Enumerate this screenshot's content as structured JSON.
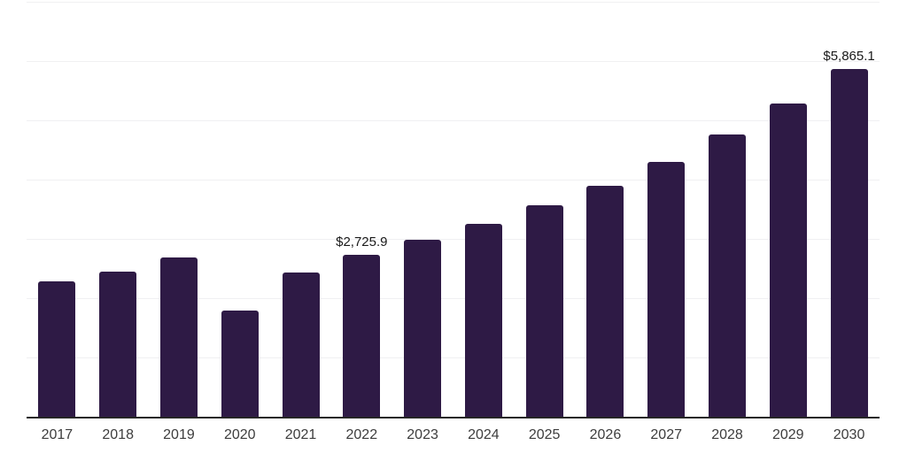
{
  "chart": {
    "background_color": "#ffffff",
    "bar_color": "#2e1a45",
    "grid_color": "#f0f0f2",
    "axis_line_color": "#262626",
    "tick_label_color": "#3d3d3d",
    "data_label_color": "#1a1a1a"
  },
  "chart_data": {
    "type": "bar",
    "title": "",
    "xlabel": "",
    "ylabel": "",
    "categories": [
      "2017",
      "2018",
      "2019",
      "2020",
      "2021",
      "2022",
      "2023",
      "2024",
      "2025",
      "2026",
      "2027",
      "2028",
      "2029",
      "2030"
    ],
    "values": [
      2280,
      2455,
      2680,
      1790,
      2440,
      2725.9,
      2990,
      3260,
      3560,
      3900,
      4300,
      4765,
      5285,
      5865.1
    ],
    "data_labels": [
      "",
      "",
      "",
      "",
      "",
      "$2,725.9",
      "",
      "",
      "",
      "",
      "",
      "",
      "",
      "$5,865.1"
    ],
    "ylim": [
      0,
      7000
    ],
    "grid_interval": 1000,
    "grid_on": true,
    "legend_position": "none"
  }
}
